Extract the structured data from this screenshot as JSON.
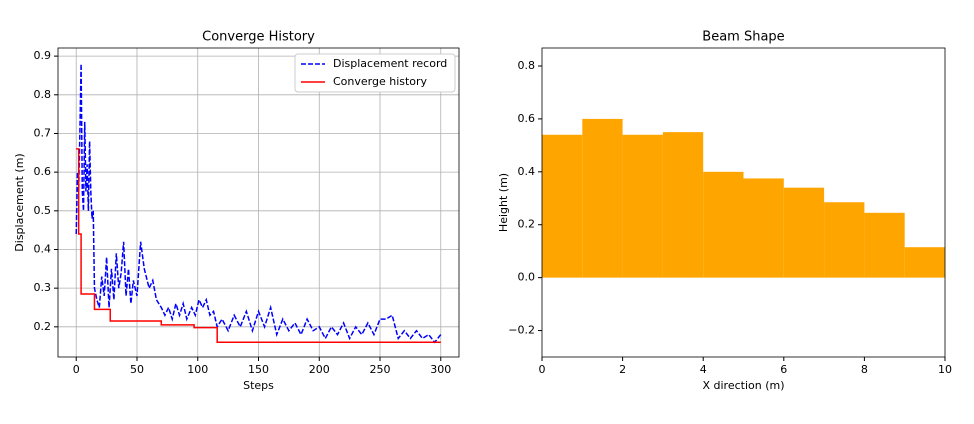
{
  "chart_data": [
    {
      "type": "line",
      "title": "Converge History",
      "x_label": "Steps",
      "y_label": "Displacement (m)",
      "xlim": [
        -15,
        315
      ],
      "xticks": [
        0,
        50,
        100,
        150,
        200,
        250,
        300
      ],
      "ylim": [
        0.122,
        0.921
      ],
      "yticks": [
        0.2,
        0.3,
        0.4,
        0.5,
        0.6,
        0.7,
        0.8,
        0.9
      ],
      "grid": true,
      "legend": "upper right",
      "series": [
        {
          "name": "Displacement record",
          "color": "#0000ff",
          "dash": true,
          "x": [
            0,
            1,
            2,
            3,
            4,
            5,
            6,
            7,
            8,
            9,
            10,
            11,
            12,
            13,
            14,
            15,
            17,
            19,
            21,
            23,
            25,
            27,
            29,
            31,
            33,
            35,
            37,
            39,
            41,
            43,
            45,
            47,
            50,
            53,
            56,
            60,
            63,
            66,
            70,
            73,
            76,
            79,
            82,
            85,
            88,
            91,
            95,
            98,
            101,
            104,
            107,
            110,
            113,
            116,
            120,
            125,
            130,
            135,
            140,
            145,
            150,
            155,
            160,
            165,
            170,
            175,
            180,
            185,
            190,
            195,
            200,
            205,
            210,
            215,
            220,
            225,
            230,
            235,
            240,
            245,
            250,
            255,
            260,
            265,
            270,
            275,
            280,
            285,
            290,
            295,
            300
          ],
          "values": [
            0.44,
            0.6,
            0.55,
            0.7,
            0.88,
            0.55,
            0.5,
            0.73,
            0.55,
            0.62,
            0.5,
            0.68,
            0.55,
            0.48,
            0.5,
            0.3,
            0.27,
            0.25,
            0.33,
            0.28,
            0.38,
            0.25,
            0.35,
            0.27,
            0.39,
            0.3,
            0.34,
            0.42,
            0.28,
            0.35,
            0.26,
            0.32,
            0.28,
            0.42,
            0.35,
            0.3,
            0.32,
            0.27,
            0.25,
            0.23,
            0.25,
            0.22,
            0.26,
            0.23,
            0.26,
            0.22,
            0.25,
            0.23,
            0.27,
            0.25,
            0.27,
            0.23,
            0.24,
            0.2,
            0.22,
            0.19,
            0.23,
            0.2,
            0.24,
            0.19,
            0.24,
            0.2,
            0.25,
            0.18,
            0.22,
            0.19,
            0.21,
            0.18,
            0.22,
            0.19,
            0.2,
            0.17,
            0.2,
            0.18,
            0.21,
            0.17,
            0.2,
            0.18,
            0.21,
            0.18,
            0.22,
            0.22,
            0.23,
            0.17,
            0.19,
            0.17,
            0.19,
            0.17,
            0.18,
            0.16,
            0.18
          ]
        },
        {
          "name": "Converge history",
          "color": "#ff0000",
          "dash": false,
          "x": [
            0,
            2,
            2,
            4,
            4,
            15,
            15,
            28,
            28,
            70,
            70,
            97,
            97,
            116,
            116,
            300
          ],
          "values": [
            0.66,
            0.66,
            0.44,
            0.44,
            0.285,
            0.285,
            0.245,
            0.245,
            0.215,
            0.215,
            0.205,
            0.205,
            0.198,
            0.198,
            0.16,
            0.16
          ]
        }
      ]
    },
    {
      "type": "histogram",
      "title": "Beam Shape",
      "x_label": "X direction (m)",
      "y_label": "Height (m)",
      "xlim": [
        0,
        10
      ],
      "xticks": [
        0,
        2,
        4,
        6,
        8,
        10
      ],
      "ylim": [
        -0.3,
        0.868
      ],
      "yticks": [
        {
          "value": -0.2,
          "label": "−0.2"
        },
        {
          "value": 0,
          "label": "0.0"
        },
        0.2,
        0.4,
        0.6,
        0.8
      ],
      "grid": false,
      "color": "#ffa500",
      "bins": [
        0,
        1,
        2,
        3,
        4,
        5,
        6,
        7,
        8,
        9,
        10
      ],
      "values": [
        0.54,
        0.6,
        0.54,
        0.55,
        0.4,
        0.375,
        0.34,
        0.285,
        0.245,
        0.115
      ]
    }
  ]
}
